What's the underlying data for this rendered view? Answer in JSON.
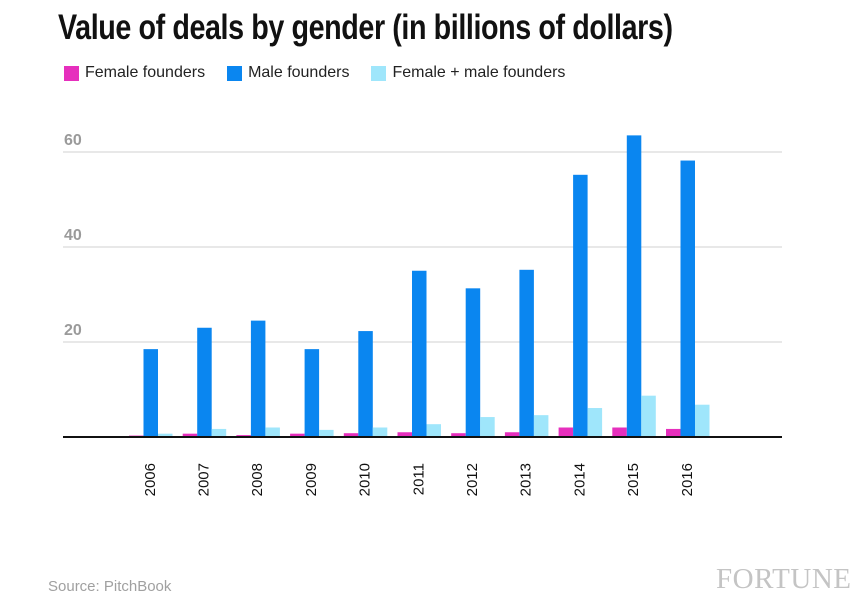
{
  "chart_data": {
    "type": "bar",
    "title": "Value of deals by gender (in billions of dollars)",
    "categories": [
      "2006",
      "2007",
      "2008",
      "2009",
      "2010",
      "2011",
      "2012",
      "2013",
      "2014",
      "2015",
      "2016"
    ],
    "series": [
      {
        "name": "Female founders",
        "color": "#e62fbd",
        "values": [
          0.3,
          0.7,
          0.4,
          0.7,
          0.8,
          1.0,
          0.8,
          1.0,
          2.0,
          2.0,
          1.7
        ]
      },
      {
        "name": "Male founders",
        "color": "#0a86f0",
        "values": [
          18.5,
          23.0,
          24.5,
          18.5,
          22.3,
          35.0,
          31.3,
          35.2,
          55.2,
          63.5,
          58.2
        ]
      },
      {
        "name": "Female + male founders",
        "color": "#9fe6fb",
        "values": [
          0.7,
          1.7,
          2.0,
          1.5,
          2.0,
          2.7,
          4.2,
          4.6,
          6.1,
          8.7,
          6.8
        ]
      }
    ],
    "yticks": [
      20,
      40,
      60
    ],
    "ylim": [
      0,
      68
    ],
    "grid": true,
    "legend_position": "top-left"
  },
  "footer": {
    "source": "Source: PitchBook",
    "logo": "FORTUNE"
  }
}
